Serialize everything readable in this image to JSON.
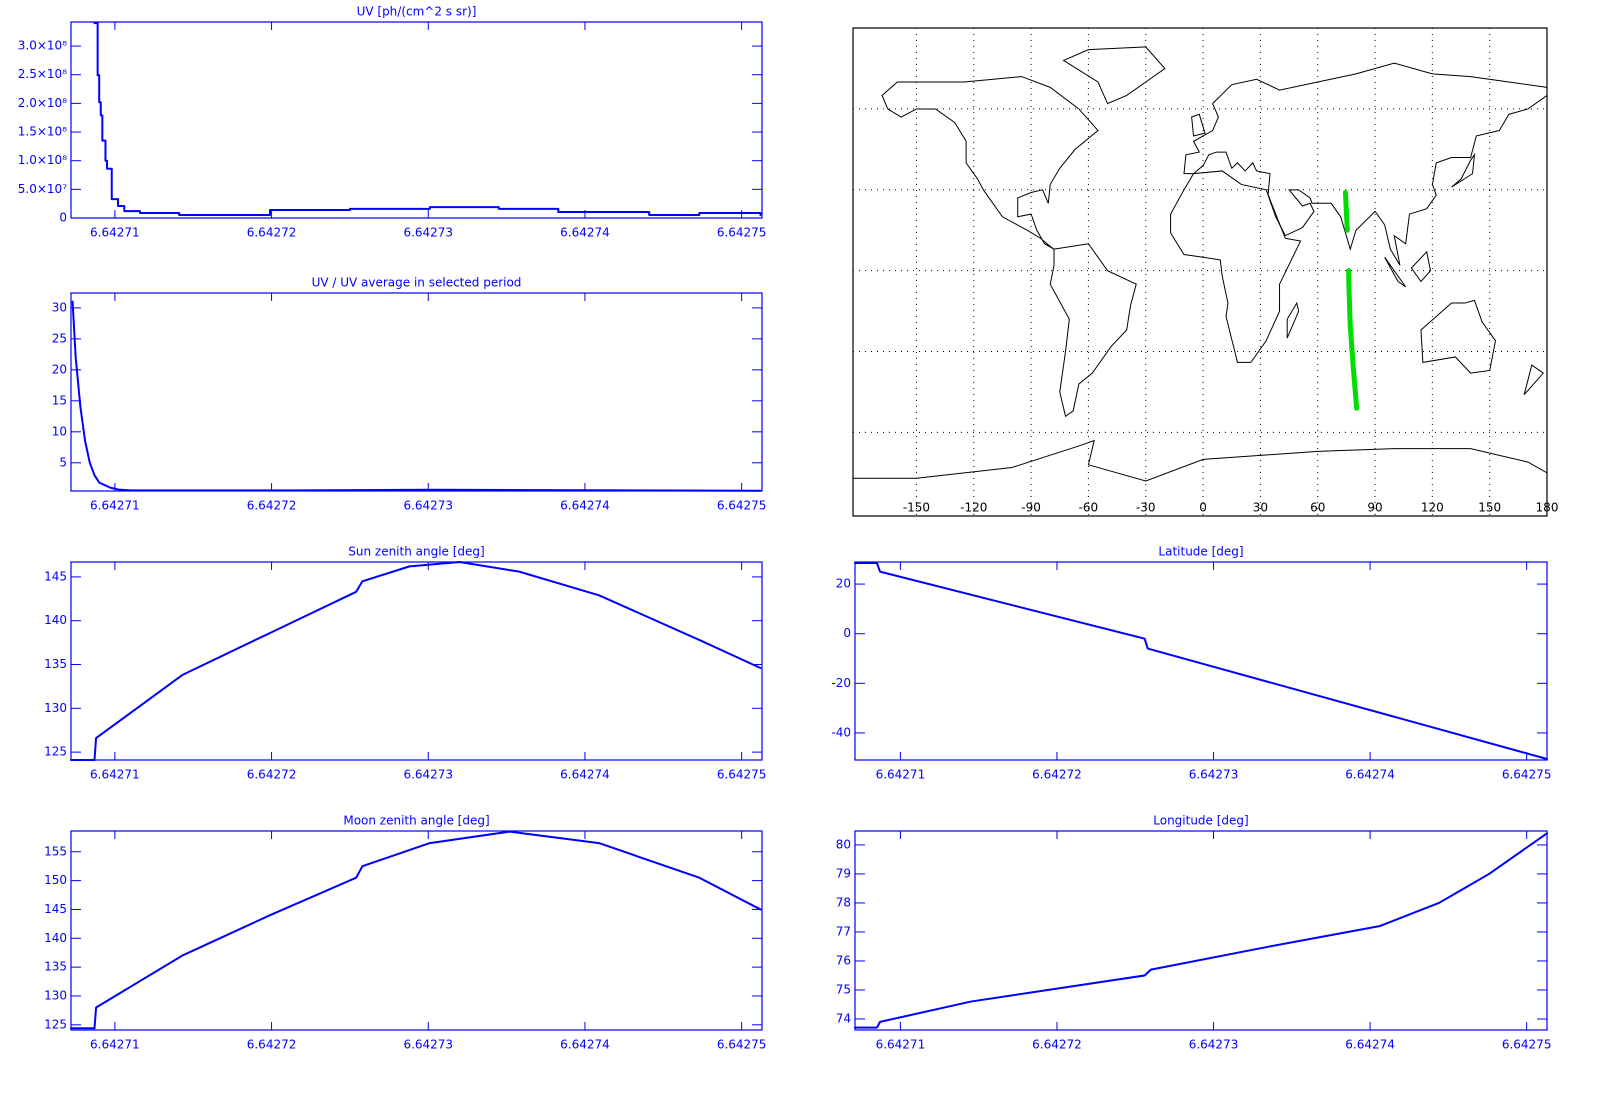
{
  "chart_data": [
    {
      "type": "line",
      "title": "UV [ph/(cm^2 s sr)]",
      "color": "#0000ff",
      "axis_color": "#0000ff",
      "step": "post",
      "x": [
        6.6427087,
        6.6427089,
        6.642709,
        6.6427091,
        6.6427092,
        6.6427094,
        6.6427095,
        6.6427098,
        6.6427102,
        6.6427106,
        6.6427116,
        6.6427141,
        6.6427198,
        6.6427199,
        6.642725,
        6.6427301,
        6.6427345,
        6.6427383,
        6.6427441,
        6.6427473,
        6.6427498,
        6.6427512
      ],
      "values": [
        340000000,
        249000000,
        202000000,
        179000000,
        135000000,
        100000000,
        86000000,
        33000000,
        21000000,
        12000000,
        8800000,
        5300000,
        5300000,
        14000000,
        16000000,
        19000000,
        16000000,
        10500000,
        5300000,
        8800000,
        8800000,
        5300000
      ],
      "xlim": [
        6.6427072,
        6.6427513
      ],
      "xticks": [
        6.64271,
        6.64272,
        6.64273,
        6.64274,
        6.64275
      ],
      "ylim": [
        0,
        342000000
      ],
      "yticks": [
        0,
        {
          "value": 50000000,
          "label": "5.0×10⁷"
        },
        {
          "value": 100000000,
          "label": "1.0×10⁸"
        },
        {
          "value": 150000000,
          "label": "1.5×10⁸"
        },
        {
          "value": 200000000,
          "label": "2.0×10⁸"
        },
        {
          "value": 250000000,
          "label": "2.5×10⁸"
        },
        {
          "value": 300000000,
          "label": "3.0×10⁸"
        }
      ]
    },
    {
      "type": "line",
      "title": "UV / UV average in selected period",
      "color": "#0000ff",
      "axis_color": "#0000ff",
      "x": [
        6.6427073,
        6.6427075,
        6.6427078,
        6.6427081,
        6.6427084,
        6.6427087,
        6.642709,
        6.6427097,
        6.6427102,
        6.642711,
        6.6427218,
        6.6427301,
        6.6427371,
        6.6427512
      ],
      "values": [
        31,
        22,
        14,
        8.5,
        5,
        3,
        1.8,
        1.0,
        0.7,
        0.55,
        0.55,
        0.65,
        0.6,
        0.5
      ],
      "xlim": [
        6.6427072,
        6.6427513
      ],
      "xticks": [
        6.64271,
        6.64272,
        6.64273,
        6.64274,
        6.64275
      ],
      "ylim": [
        0.45,
        32.4
      ],
      "yticks": [
        5,
        10,
        15,
        20,
        25,
        30
      ]
    },
    {
      "type": "line",
      "title": "Sun zenith angle [deg]",
      "color": "#0000ff",
      "axis_color": "#0000ff",
      "x": [
        6.6427072,
        6.6427087,
        6.6427088,
        6.6427143,
        6.6427199,
        6.6427254,
        6.6427258,
        6.6427288,
        6.642732,
        6.6427358,
        6.6427409,
        6.6427473,
        6.6427512
      ],
      "values": [
        124.1,
        124.1,
        126.6,
        133.8,
        138.6,
        143.3,
        144.5,
        146.2,
        146.7,
        145.6,
        142.9,
        137.8,
        134.6
      ],
      "xlim": [
        6.6427072,
        6.6427513
      ],
      "xticks": [
        6.64271,
        6.64272,
        6.64273,
        6.64274,
        6.64275
      ],
      "ylim": [
        124.1,
        146.7
      ],
      "yticks": [
        125,
        130,
        135,
        140,
        145
      ]
    },
    {
      "type": "line",
      "title": "Moon zenith angle [deg]",
      "color": "#0000ff",
      "axis_color": "#0000ff",
      "x": [
        6.6427072,
        6.6427087,
        6.6427088,
        6.6427143,
        6.6427199,
        6.6427254,
        6.6427258,
        6.6427301,
        6.6427352,
        6.6427409,
        6.6427473,
        6.6427512
      ],
      "values": [
        124.4,
        124.4,
        128,
        137,
        144,
        150.5,
        152.5,
        156.5,
        158.5,
        156.5,
        150.5,
        145
      ],
      "xlim": [
        6.6427072,
        6.6427513
      ],
      "xticks": [
        6.64271,
        6.64272,
        6.64273,
        6.64274,
        6.64275
      ],
      "ylim": [
        124.1,
        158.6
      ],
      "yticks": [
        125,
        130,
        135,
        140,
        145,
        150,
        155
      ]
    },
    {
      "type": "map",
      "color": "#00dd00",
      "axis_color": "#000000",
      "grid": true,
      "x": [
        74.5,
        75.5,
        null,
        76.2,
        76.3,
        77,
        78.5,
        80.4
      ],
      "values": [
        29,
        15,
        null,
        0,
        -5,
        -20,
        -35,
        -51
      ],
      "xlim": [
        -183.2,
        180
      ],
      "xticks": [
        -150,
        -120,
        -90,
        -60,
        -30,
        0,
        30,
        60,
        90,
        120,
        150,
        180
      ],
      "ylim": [
        -91,
        90
      ],
      "yticks": [
        -60,
        -30,
        0,
        30,
        60
      ]
    },
    {
      "type": "line",
      "title": "Latitude [deg]",
      "color": "#0000ff",
      "axis_color": "#0000ff",
      "x": [
        6.6427071,
        6.6427085,
        6.6427087,
        6.6427256,
        6.6427258,
        6.6427513
      ],
      "values": [
        28.5,
        28.5,
        25,
        -2,
        -6,
        -50.5
      ],
      "xlim": [
        6.6427071,
        6.6427513
      ],
      "xticks": [
        6.64271,
        6.64272,
        6.64273,
        6.64274,
        6.64275
      ],
      "ylim": [
        -50.9,
        28.9
      ],
      "yticks": [
        -40,
        -20,
        0,
        20
      ]
    },
    {
      "type": "line",
      "title": "Longitude [deg]",
      "color": "#0000ff",
      "axis_color": "#0000ff",
      "x": [
        6.6427071,
        6.6427085,
        6.6427087,
        6.6427145,
        6.6427256,
        6.642726,
        6.6427336,
        6.6427406,
        6.6427444,
        6.6427476,
        6.6427513
      ],
      "values": [
        73.7,
        73.7,
        73.9,
        74.6,
        75.5,
        75.7,
        76.5,
        77.2,
        78,
        79,
        80.4
      ],
      "xlim": [
        6.6427071,
        6.6427513
      ],
      "xticks": [
        6.64271,
        6.64272,
        6.64273,
        6.64274,
        6.64275
      ],
      "ylim": [
        73.62,
        80.48
      ],
      "yticks": [
        74,
        75,
        76,
        77,
        78,
        79,
        80
      ]
    }
  ]
}
